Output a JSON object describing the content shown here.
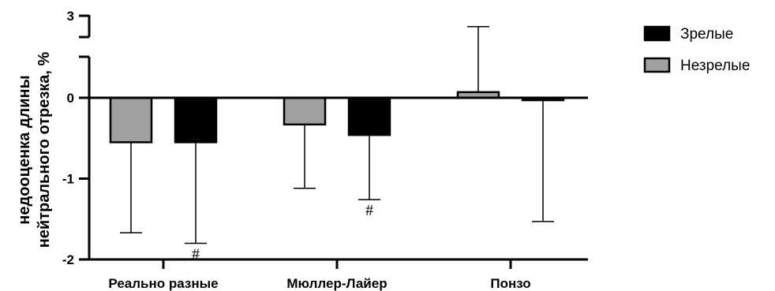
{
  "chart_data": {
    "type": "bar",
    "categories": [
      "Реально разные",
      "Мюллер-Лайер",
      "Понзо"
    ],
    "series": [
      {
        "name": "Незрелые",
        "color": "#a0a0a0",
        "values": [
          -0.55,
          -0.33,
          0.07
        ],
        "error_extent": [
          -1.67,
          -1.12,
          0.88
        ]
      },
      {
        "name": "Зрелые",
        "color": "#000000",
        "values": [
          -0.55,
          -0.46,
          -0.03
        ],
        "error_extent": [
          -1.8,
          -1.26,
          -1.53
        ]
      }
    ],
    "annotations": [
      {
        "category": "Реально разные",
        "series": "Зрелые",
        "text": "#"
      },
      {
        "category": "Мюллер-Лайер",
        "series": "Зрелые",
        "text": "#"
      }
    ],
    "ylabel_lines": [
      "недооценка длины",
      "нейтрального отрезка, %"
    ],
    "xlabel": "",
    "ylim": [
      -2,
      3
    ],
    "y_axis_break": [
      0.5,
      2.5
    ],
    "yticks": [
      "-2",
      "-1",
      "0",
      "3"
    ],
    "legend": {
      "placement": "top-right",
      "items": [
        {
          "label": "Зрелые",
          "color": "#000000"
        },
        {
          "label": "Незрелые",
          "color": "#a0a0a0"
        }
      ]
    },
    "grid": false
  }
}
